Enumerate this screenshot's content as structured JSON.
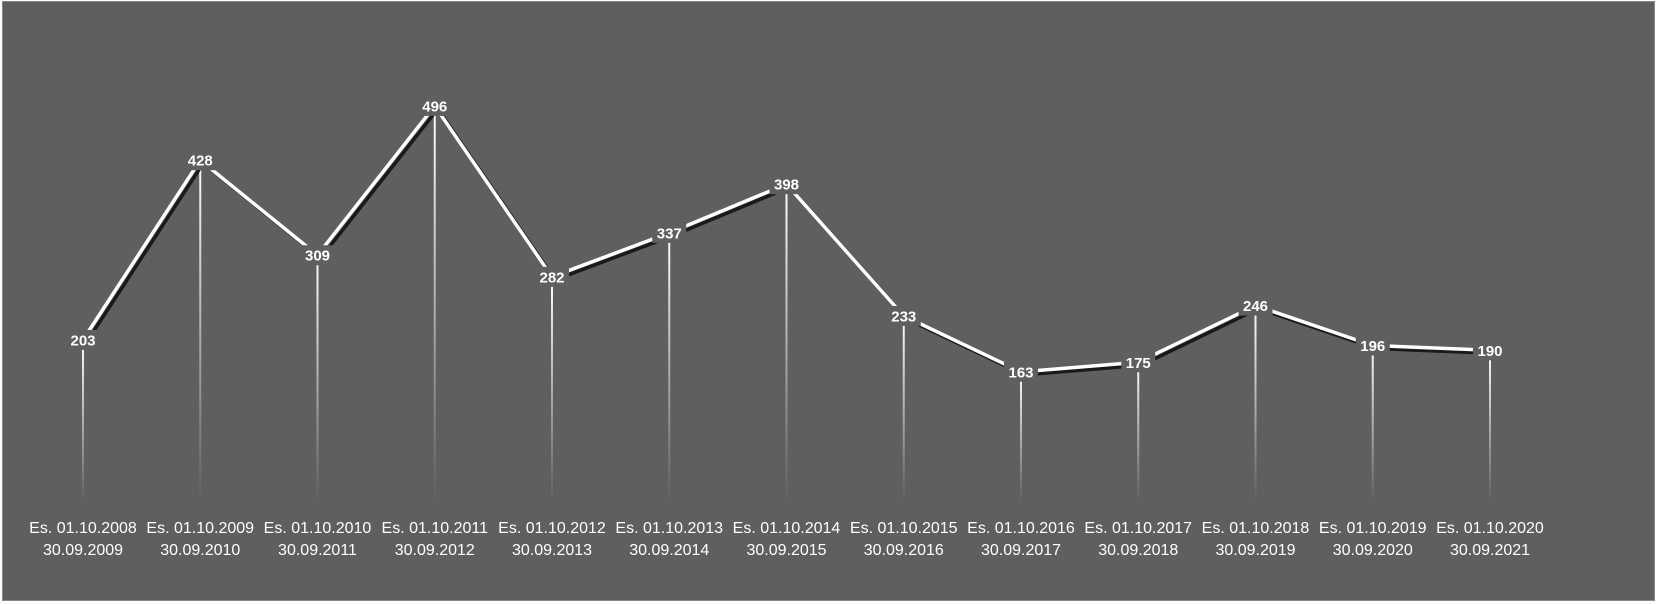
{
  "chart_data": {
    "type": "line",
    "title": "",
    "xlabel": "",
    "ylabel": "",
    "ylim": [
      0,
      560
    ],
    "grid": false,
    "legend": "none",
    "drop_lines": true,
    "data_labels": true,
    "categories": [
      [
        "Es. 01.10.2008",
        "30.09.2009"
      ],
      [
        "Es. 01.10.2009",
        "30.09.2010"
      ],
      [
        "Es. 01.10.2010",
        "30.09.2011"
      ],
      [
        "Es. 01.10.2011",
        "30.09.2012"
      ],
      [
        "Es. 01.10.2012",
        "30.09.2013"
      ],
      [
        "Es. 01.10.2013",
        "30.09.2014"
      ],
      [
        "Es. 01.10.2014",
        "30.09.2015"
      ],
      [
        "Es. 01.10.2015",
        "30.09.2016"
      ],
      [
        "Es. 01.10.2016",
        "30.09.2017"
      ],
      [
        "Es. 01.10.2017",
        "30.09.2018"
      ],
      [
        "Es. 01.10.2018",
        "30.09.2019"
      ],
      [
        "Es. 01.10.2019",
        "30.09.2020"
      ],
      [
        "Es. 01.10.2020",
        "30.09.2021"
      ]
    ],
    "values": [
      203,
      428,
      309,
      496,
      282,
      337,
      398,
      233,
      163,
      175,
      246,
      196,
      190
    ],
    "colors": {
      "background": "#5f5f5f",
      "line": "#ffffff",
      "line_shadow": "#1a1a1a",
      "labels": "#ffffff"
    }
  }
}
